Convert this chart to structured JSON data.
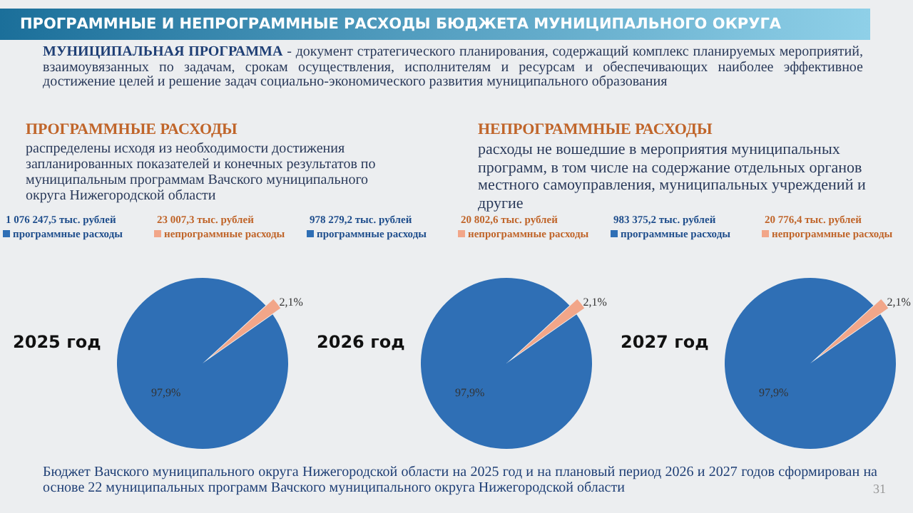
{
  "chart_data": [
    {
      "type": "other",
      "title": "ПРОГРАММНЫЕ И НЕПРОГРАММНЫЕ РАСХОДЫ БЮДЖЕТА МУНИЦИПАЛЬНОГО ОКРУГА",
      "annotations": [
        "МУНИЦИПАЛЬНАЯ ПРОГРАММА",
        "- документ стратегического планирования, содержащий комплекс планируемых мероприятий, взаимоувязанных по задачам, срокам осуществления, исполнителям и ресурсам и обеспечивающих наиболее эффективное достижение целей и решение задач социально-экономического развития муниципального образования",
        "ПРОГРАММНЫЕ РАСХОДЫ",
        "распределены исходя из необходимости достижения запланированных показателей и конечных результатов по муниципальным программам Вачского муниципального округа Нижегородской области",
        "НЕПРОГРАММНЫЕ РАСХОДЫ",
        "расходы не вошедшие в мероприятия муниципальных программ, в том числе на содержание отдельных органов местного самоуправления, муниципальных учреждений и другие",
        "Бюджет Вачского муниципального округа Нижегородской области на 2025 год и на плановый период 2026 и 2027 годов сформирован на основе 22 муниципальных программ Вачского муниципального округа Нижегородской области",
        "31"
      ]
    },
    {
      "type": "pie",
      "title": "2025 год",
      "categories": [
        "программные расходы",
        "непрограммные расходы"
      ],
      "values": [
        97.9,
        2.1
      ],
      "legend": "top left",
      "value_labels": [
        "97,9%",
        "2,1%"
      ],
      "colors": [
        "#2f6fb5",
        "#f2a689"
      ],
      "annotations": [
        "1 076 247,5 тыс. рублей",
        "23 007,3 тыс. рублей"
      ]
    },
    {
      "type": "pie",
      "title": "2026 год",
      "categories": [
        "программные расходы",
        "непрограммные расходы"
      ],
      "values": [
        97.9,
        2.1
      ],
      "legend": "top left",
      "value_labels": [
        "97,9%",
        "2,1%"
      ],
      "colors": [
        "#2f6fb5",
        "#f2a689"
      ],
      "annotations": [
        "978 279,2 тыс. рублей",
        "20 802,6 тыс. рублей"
      ]
    },
    {
      "type": "pie",
      "title": "2027 год",
      "categories": [
        "программные расходы",
        "непрограммные расходы"
      ],
      "values": [
        97.9,
        2.1
      ],
      "legend": "top left",
      "value_labels": [
        "97,9%",
        "2,1%"
      ],
      "colors": [
        "#2f6fb5",
        "#f2a689"
      ],
      "annotations": [
        "983 375,2 тыс. рублей",
        "20 776,4 тыс. рублей"
      ]
    }
  ]
}
